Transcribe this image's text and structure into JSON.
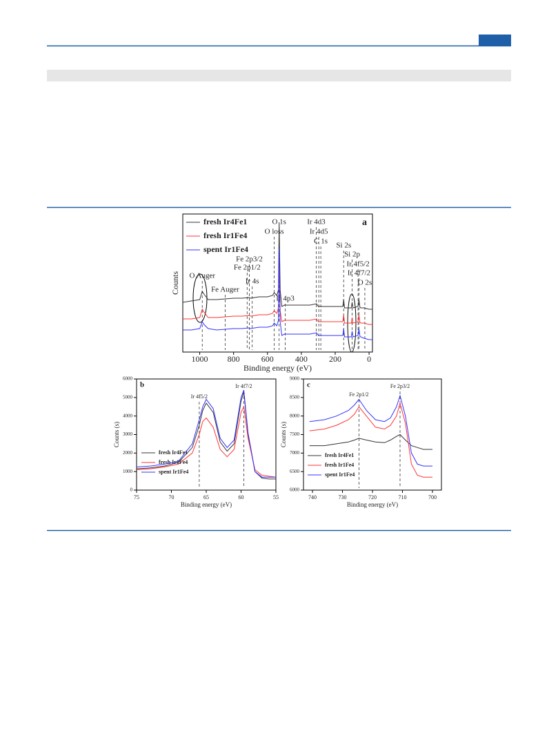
{
  "chart_data": [
    {
      "type": "line",
      "panel_label": "a",
      "xlabel": "Binding energy (eV)",
      "ylabel": "Counts",
      "xlim": [
        1100,
        -20
      ],
      "xticks": [
        1000,
        800,
        600,
        400,
        200,
        0
      ],
      "ylim": [
        0,
        100
      ],
      "legend": "upper left",
      "x": [
        1100,
        1050,
        1000,
        985,
        975,
        950,
        900,
        850,
        800,
        750,
        710,
        700,
        650,
        600,
        570,
        560,
        545,
        535,
        531,
        525,
        515,
        500,
        450,
        400,
        350,
        310,
        300,
        250,
        200,
        155,
        150,
        145,
        105,
        100,
        95,
        65,
        60,
        55,
        50,
        30,
        0,
        -20
      ],
      "series": [
        {
          "name": "fresh Ir4Fe1",
          "color": "#333333",
          "values": [
            36,
            37,
            38,
            44,
            42,
            38,
            38,
            38.5,
            39,
            39,
            39.5,
            39,
            40,
            40,
            41,
            43,
            41,
            45,
            94,
            45,
            33,
            34,
            34,
            34,
            34,
            35,
            33,
            33,
            33,
            33,
            38,
            32,
            32,
            36,
            32,
            33,
            38,
            33,
            32,
            32,
            31,
            31
          ]
        },
        {
          "name": "fresh Ir1Fe4",
          "color": "#ff3333",
          "values": [
            24,
            24,
            25,
            31,
            29,
            25,
            25,
            25.5,
            26,
            26,
            26.5,
            26,
            27,
            27,
            28,
            30,
            28,
            32,
            70,
            30,
            22,
            23,
            23,
            23,
            23,
            24,
            22,
            22,
            22,
            22,
            27,
            21,
            21,
            25,
            21,
            22,
            27,
            22,
            21,
            21,
            20,
            20
          ]
        },
        {
          "name": "spent Ir1Fe4",
          "color": "#3333ff",
          "values": [
            16,
            16,
            17,
            22,
            20,
            17,
            16,
            16.5,
            17,
            17,
            17.5,
            17,
            18,
            18,
            19,
            21,
            19,
            23,
            75,
            22,
            12,
            13,
            13,
            13,
            13,
            14,
            12,
            12,
            12,
            12,
            17,
            11,
            11,
            15,
            11,
            12,
            17,
            12,
            11,
            10,
            9,
            9
          ]
        }
      ],
      "annotations": [
        {
          "text": "O Auger",
          "x": 985
        },
        {
          "text": "Fe Auger",
          "x": 850
        },
        {
          "text": "Fe 2p1/2",
          "x": 720
        },
        {
          "text": "Fe 2p3/2",
          "x": 707
        },
        {
          "text": "Ir 4s",
          "x": 690
        },
        {
          "text": "O loss",
          "x": 560
        },
        {
          "text": "O 1s",
          "x": 531
        },
        {
          "text": "Ir 4p3",
          "x": 495
        },
        {
          "text": "Ir 4d3",
          "x": 312
        },
        {
          "text": "Ir 4d5",
          "x": 297
        },
        {
          "text": "C 1s",
          "x": 285
        },
        {
          "text": "Si 2s",
          "x": 150
        },
        {
          "text": "Si 2p",
          "x": 100
        },
        {
          "text": "Ir 4f5/2",
          "x": 65
        },
        {
          "text": "Ir 4f7/2",
          "x": 60
        },
        {
          "text": "O 2s",
          "x": 25
        }
      ]
    },
    {
      "type": "line",
      "panel_label": "b",
      "xlabel": "Binding energy (eV)",
      "ylabel": "Counts (s)",
      "xlim": [
        75,
        55
      ],
      "xticks": [
        75,
        70,
        65,
        60,
        55
      ],
      "ylim": [
        0,
        6000
      ],
      "yticks": [
        0,
        1000,
        2000,
        3000,
        4000,
        5000,
        6000
      ],
      "legend": "lower left",
      "x": [
        75,
        73,
        71,
        69,
        67,
        66,
        65.5,
        65,
        64,
        63,
        62,
        61,
        60,
        59.6,
        59,
        58,
        57,
        56,
        55
      ],
      "series": [
        {
          "name": "fresh Ir4Fe1",
          "color": "#333333",
          "values": [
            1150,
            1200,
            1300,
            1500,
            2300,
            3500,
            4300,
            4700,
            4200,
            2600,
            2100,
            2500,
            4800,
            5300,
            3000,
            1000,
            650,
            600,
            600
          ]
        },
        {
          "name": "fresh Ir1Fe4",
          "color": "#ff3333",
          "values": [
            1100,
            1150,
            1250,
            1400,
            2000,
            3000,
            3700,
            3900,
            3400,
            2200,
            1800,
            2200,
            4200,
            4500,
            2800,
            1100,
            800,
            750,
            700
          ]
        },
        {
          "name": "spent Ir1Fe4",
          "color": "#3333ff",
          "values": [
            1250,
            1300,
            1400,
            1550,
            2500,
            3800,
            4500,
            4900,
            4400,
            2800,
            2300,
            2700,
            5000,
            5400,
            3100,
            1000,
            700,
            700,
            700
          ]
        }
      ],
      "annotations": [
        {
          "text": "Ir 4f5/2",
          "x": 66
        },
        {
          "text": "Ir 4f7/2",
          "x": 59.6
        }
      ]
    },
    {
      "type": "line",
      "panel_label": "c",
      "xlabel": "Binding energy (eV)",
      "ylabel": "Counts (s)",
      "xlim": [
        743,
        697
      ],
      "xticks": [
        740,
        730,
        720,
        710,
        700
      ],
      "ylim": [
        6000,
        9000
      ],
      "yticks": [
        6000,
        6500,
        7000,
        7500,
        8000,
        8500,
        9000
      ],
      "legend": "lower left",
      "x": [
        741,
        736,
        732,
        728,
        726,
        724.5,
        722,
        719,
        716,
        714,
        712,
        710.8,
        709,
        707,
        705,
        703,
        700
      ],
      "series": [
        {
          "name": "fresh Ir4Fe1",
          "color": "#333333",
          "values": [
            7200,
            7200,
            7250,
            7300,
            7350,
            7400,
            7350,
            7300,
            7280,
            7350,
            7450,
            7500,
            7350,
            7200,
            7150,
            7100,
            7100
          ]
        },
        {
          "name": "fresh Ir1Fe4",
          "color": "#ff3333",
          "values": [
            7600,
            7650,
            7750,
            7900,
            8050,
            8250,
            8000,
            7700,
            7650,
            7750,
            8000,
            8350,
            7800,
            6700,
            6400,
            6350,
            6350
          ]
        },
        {
          "name": "spent Ir1Fe4",
          "color": "#3333ff",
          "values": [
            7850,
            7900,
            8000,
            8150,
            8300,
            8450,
            8150,
            7900,
            7850,
            7950,
            8250,
            8550,
            8000,
            7000,
            6700,
            6650,
            6650
          ]
        }
      ],
      "annotations": [
        {
          "text": "Fe 2p1/2",
          "x": 724.5
        },
        {
          "text": "Fe 2p3/2",
          "x": 710.8
        }
      ]
    }
  ]
}
